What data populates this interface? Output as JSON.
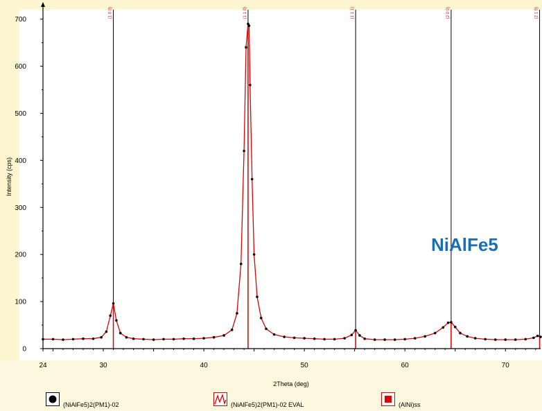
{
  "chart_data": {
    "type": "line",
    "annotation": "NiAlFe5",
    "xlabel": "2Theta (deg)",
    "ylabel": "Intensity (cps)",
    "xlim": [
      24,
      73.5
    ],
    "ylim": [
      0,
      720
    ],
    "xticks": [
      "24",
      "30",
      "40",
      "50",
      "60",
      "70"
    ],
    "yticks": [
      "0",
      "100",
      "200",
      "300",
      "400",
      "500",
      "600",
      "700"
    ],
    "grid": false,
    "legend_position": "bottom",
    "colors": {
      "measured": "#000000",
      "fit": "#e00000",
      "phase": "#e00000",
      "reference": "#000000"
    },
    "series": [
      {
        "name": "(NiAlFe5)2(PM1)-02",
        "style": "black-dots",
        "x": [
          24,
          25,
          26,
          27,
          28,
          29,
          29.8,
          30.3,
          30.7,
          31.0,
          31.3,
          31.7,
          32.3,
          33,
          34,
          35,
          36,
          37,
          38,
          39,
          40,
          41,
          42,
          42.8,
          43.3,
          43.7,
          44.0,
          44.2,
          44.4,
          44.5,
          44.6,
          44.8,
          45.0,
          45.3,
          45.7,
          46.2,
          47,
          48,
          49,
          50,
          51,
          52,
          53,
          54,
          54.7,
          55.1,
          55.5,
          56,
          57,
          58,
          59,
          60,
          61,
          62,
          63,
          63.8,
          64.3,
          64.6,
          65.0,
          65.5,
          66.2,
          67,
          68,
          69,
          70,
          71,
          72,
          72.8,
          73.2,
          73.5
        ],
        "y": [
          20,
          20,
          19,
          20,
          21,
          21,
          24,
          36,
          70,
          96,
          60,
          33,
          24,
          21,
          20,
          19,
          20,
          20,
          21,
          21,
          22,
          24,
          28,
          40,
          75,
          180,
          420,
          640,
          690,
          686,
          560,
          360,
          200,
          110,
          65,
          42,
          30,
          25,
          23,
          22,
          21,
          20,
          20,
          22,
          29,
          39,
          28,
          21,
          19,
          19,
          19,
          20,
          22,
          26,
          33,
          45,
          55,
          56,
          46,
          33,
          26,
          22,
          20,
          19,
          19,
          19,
          20,
          23,
          27,
          25
        ]
      },
      {
        "name": "(NiAlFe5)2(PM1)-02 EVAL",
        "style": "red-line",
        "x": [
          24,
          25,
          26,
          27,
          28,
          29,
          29.8,
          30.3,
          30.7,
          31.0,
          31.3,
          31.7,
          32.3,
          33,
          34,
          35,
          36,
          37,
          38,
          39,
          40,
          41,
          42,
          42.8,
          43.3,
          43.7,
          44.0,
          44.2,
          44.4,
          44.5,
          44.6,
          44.8,
          45.0,
          45.3,
          45.7,
          46.2,
          47,
          48,
          49,
          50,
          51,
          52,
          53,
          54,
          54.7,
          55.1,
          55.5,
          56,
          57,
          58,
          59,
          60,
          61,
          62,
          63,
          63.8,
          64.3,
          64.6,
          65.0,
          65.5,
          66.2,
          67,
          68,
          69,
          70,
          71,
          72,
          72.8,
          73.2,
          73.5
        ],
        "y": [
          20,
          20,
          19,
          20,
          21,
          21,
          24,
          36,
          70,
          96,
          60,
          33,
          24,
          21,
          20,
          19,
          20,
          20,
          21,
          21,
          22,
          24,
          28,
          40,
          75,
          180,
          420,
          640,
          690,
          686,
          560,
          360,
          200,
          110,
          65,
          42,
          30,
          25,
          23,
          22,
          21,
          20,
          20,
          22,
          29,
          39,
          28,
          21,
          19,
          19,
          19,
          20,
          22,
          26,
          33,
          45,
          55,
          56,
          46,
          33,
          26,
          22,
          20,
          19,
          19,
          19,
          20,
          23,
          27,
          25
        ]
      },
      {
        "name": "(AlNi)ss",
        "style": "red-sticks",
        "x": [
          31.0,
          44.4,
          55.1,
          64.6,
          73.4
        ],
        "y": [
          97,
          690,
          39,
          56,
          27
        ]
      }
    ],
    "reference_lines": {
      "x": [
        31.0,
        44.4,
        55.1,
        64.6,
        73.4
      ],
      "labels": [
        "(1 0 0)",
        "(1 1 0)",
        "(1 1 1)",
        "(2 0 0)",
        "(2 1 0)"
      ]
    }
  },
  "legend": {
    "items": [
      {
        "label": "(NiAlFe5)2(PM1)-02",
        "icon": "filled-circle-icon"
      },
      {
        "label": "(NiAlFe5)2(PM1)-02 EVAL",
        "icon": "red-line-icon"
      },
      {
        "label": "(AlNi)ss",
        "icon": "red-square-icon"
      }
    ]
  }
}
